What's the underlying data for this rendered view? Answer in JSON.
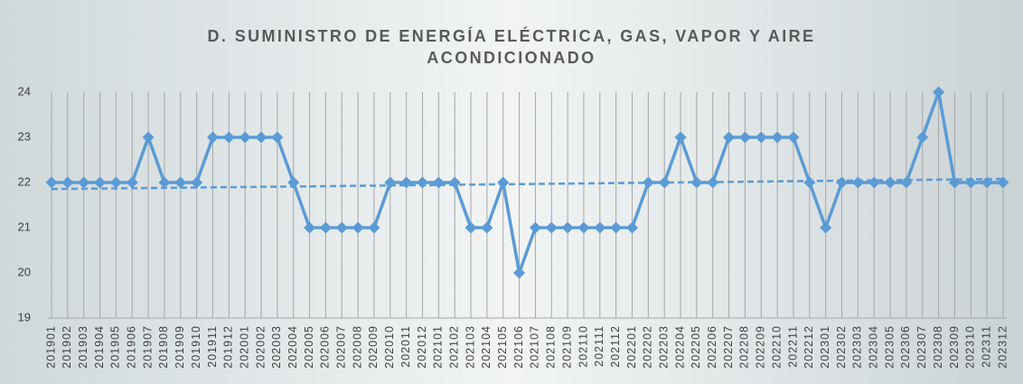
{
  "chart_data": {
    "type": "line",
    "title": "D. SUMINISTRO DE ENERGÍA ELÉCTRICA, GAS, VAPOR Y AIRE ACONDICIONADO",
    "categories": [
      "201901",
      "201902",
      "201903",
      "201904",
      "201905",
      "201906",
      "201907",
      "201908",
      "201909",
      "201910",
      "201911",
      "201912",
      "202001",
      "202002",
      "202003",
      "202004",
      "202005",
      "202006",
      "202007",
      "202008",
      "202009",
      "202010",
      "202011",
      "202012",
      "202101",
      "202102",
      "202103",
      "202104",
      "202105",
      "202106",
      "202107",
      "202108",
      "202109",
      "202110",
      "202111",
      "202112",
      "202201",
      "202202",
      "202203",
      "202204",
      "202205",
      "202206",
      "202207",
      "202208",
      "202209",
      "202210",
      "202211",
      "202212",
      "202301",
      "202302",
      "202303",
      "202304",
      "202305",
      "202306",
      "202307",
      "202308",
      "202309",
      "202310",
      "202311",
      "202312"
    ],
    "values": [
      22,
      22,
      22,
      22,
      22,
      22,
      23,
      22,
      22,
      22,
      23,
      23,
      23,
      23,
      23,
      22,
      21,
      21,
      21,
      21,
      21,
      22,
      22,
      22,
      22,
      22,
      21,
      21,
      22,
      20,
      21,
      21,
      21,
      21,
      21,
      21,
      21,
      22,
      22,
      23,
      22,
      22,
      23,
      23,
      23,
      23,
      23,
      22,
      21,
      22,
      22,
      22,
      22,
      22,
      23,
      24,
      22,
      22,
      22,
      22
    ],
    "color": "#5b9bd5",
    "ylim": [
      19,
      24
    ],
    "yticks": [
      19,
      20,
      21,
      22,
      23,
      24
    ],
    "grid": true,
    "trendline": true
  }
}
